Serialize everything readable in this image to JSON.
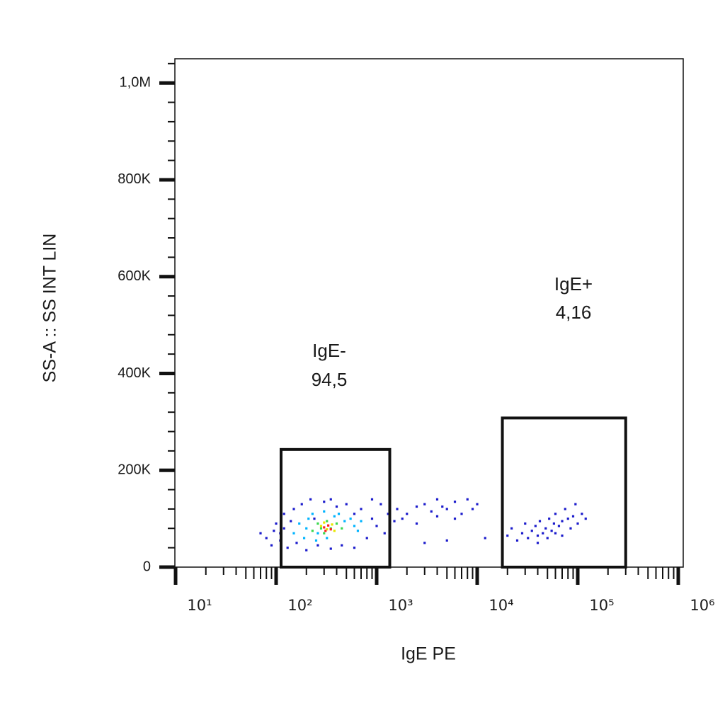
{
  "chart_data": {
    "type": "scatter",
    "xlabel": "IgE PE",
    "ylabel": "SS-A :: SS INT LIN",
    "xscale": "log",
    "xlim": [
      10,
      1000000
    ],
    "xticks": [
      {
        "value": 10,
        "label": "10¹"
      },
      {
        "value": 100,
        "label": "10²"
      },
      {
        "value": 1000,
        "label": "10³"
      },
      {
        "value": 10000,
        "label": "10⁴"
      },
      {
        "value": 100000,
        "label": "10⁵"
      },
      {
        "value": 1000000,
        "label": "10⁶"
      }
    ],
    "xminorticks": [
      20,
      30,
      40,
      50,
      60,
      70,
      80,
      90,
      200,
      300,
      400,
      500,
      600,
      700,
      800,
      900,
      2000,
      3000,
      4000,
      5000,
      6000,
      7000,
      8000,
      9000,
      20000,
      30000,
      40000,
      50000,
      60000,
      70000,
      80000,
      90000,
      200000,
      300000,
      400000,
      500000,
      600000,
      700000,
      800000,
      900000
    ],
    "ylim": [
      0,
      1050000
    ],
    "yticks": [
      0,
      {
        "value": 200000,
        "label": "200K"
      },
      {
        "value": 400000,
        "label": "400K"
      },
      {
        "value": 600000,
        "label": "600K"
      },
      {
        "value": 800000,
        "label": "800K"
      },
      {
        "value": 1000000,
        "label": "1,0M"
      }
    ],
    "yminorticks": [
      40000,
      80000,
      120000,
      160000,
      240000,
      280000,
      320000,
      360000,
      440000,
      480000,
      520000,
      560000,
      640000,
      680000,
      720000,
      760000,
      840000,
      880000,
      920000,
      960000,
      1040000
    ],
    "gates": [
      {
        "name": "IgE-",
        "percent": "94,5",
        "x": [
          112,
          1350
        ],
        "y": [
          0,
          243000
        ]
      },
      {
        "name": "IgE+",
        "percent": "4,16",
        "x": [
          17800,
          300000
        ],
        "y": [
          0,
          308000
        ]
      }
    ],
    "series": [
      {
        "color": "#1c1ccc",
        "x": [
          80,
          90,
          95,
          100,
          110,
          120,
          130,
          140,
          150,
          160,
          180,
          200,
          220,
          240,
          260,
          300,
          350,
          400,
          450,
          500,
          600,
          700,
          800,
          900,
          1000,
          1100,
          1200,
          1300,
          120,
          110,
          900,
          1500,
          70,
          600,
          350,
          1600,
          1800,
          2000,
          2500,
          3000,
          3500,
          4000,
          4500,
          5000,
          6000,
          7000,
          8000,
          9000,
          3000,
          5000,
          6000,
          10000,
          12000,
          2500,
          4000,
          20000,
          22000,
          25000,
          28000,
          30000,
          32000,
          35000,
          38000,
          40000,
          42000,
          45000,
          48000,
          50000,
          52000,
          55000,
          58000,
          60000,
          65000,
          70000,
          75000,
          80000,
          85000,
          90000,
          95000,
          100000,
          110000,
          120000,
          60000,
          70000,
          40000
        ],
        "y": [
          60000,
          45000,
          75000,
          90000,
          55000,
          110000,
          40000,
          95000,
          120000,
          50000,
          130000,
          35000,
          140000,
          100000,
          45000,
          135000,
          140000,
          125000,
          45000,
          130000,
          110000,
          120000,
          60000,
          100000,
          85000,
          130000,
          70000,
          110000,
          80000,
          70000,
          140000,
          95000,
          70000,
          40000,
          38000,
          120000,
          100000,
          110000,
          90000,
          130000,
          115000,
          140000,
          125000,
          120000,
          135000,
          110000,
          140000,
          120000,
          50000,
          55000,
          100000,
          130000,
          60000,
          125000,
          105000,
          65000,
          80000,
          55000,
          70000,
          90000,
          60000,
          75000,
          85000,
          65000,
          95000,
          70000,
          80000,
          60000,
          100000,
          75000,
          90000,
          110000,
          85000,
          95000,
          120000,
          100000,
          80000,
          105000,
          130000,
          90000,
          110000,
          100000,
          70000,
          65000,
          50000
        ]
      },
      {
        "color": "#00b4ff",
        "x": [
          150,
          170,
          190,
          210,
          230,
          260,
          300,
          320,
          380,
          420,
          480,
          550,
          600,
          650,
          250,
          200,
          700
        ],
        "y": [
          70000,
          90000,
          60000,
          100000,
          110000,
          70000,
          115000,
          60000,
          105000,
          110000,
          95000,
          100000,
          85000,
          75000,
          55000,
          80000,
          95000
        ]
      },
      {
        "color": "#3cd850",
        "x": [
          230,
          260,
          300,
          320,
          350,
          400,
          450,
          280
        ],
        "y": [
          75000,
          90000,
          70000,
          95000,
          80000,
          90000,
          80000,
          80000
        ]
      },
      {
        "color": "#e8e800",
        "x": [
          280,
          320,
          360,
          300,
          380
        ],
        "y": [
          85000,
          78000,
          88000,
          92000,
          75000
        ]
      },
      {
        "color": "#ff2020",
        "x": [
          300,
          330,
          350,
          310
        ],
        "y": [
          82000,
          86000,
          78000,
          75000
        ]
      }
    ]
  }
}
